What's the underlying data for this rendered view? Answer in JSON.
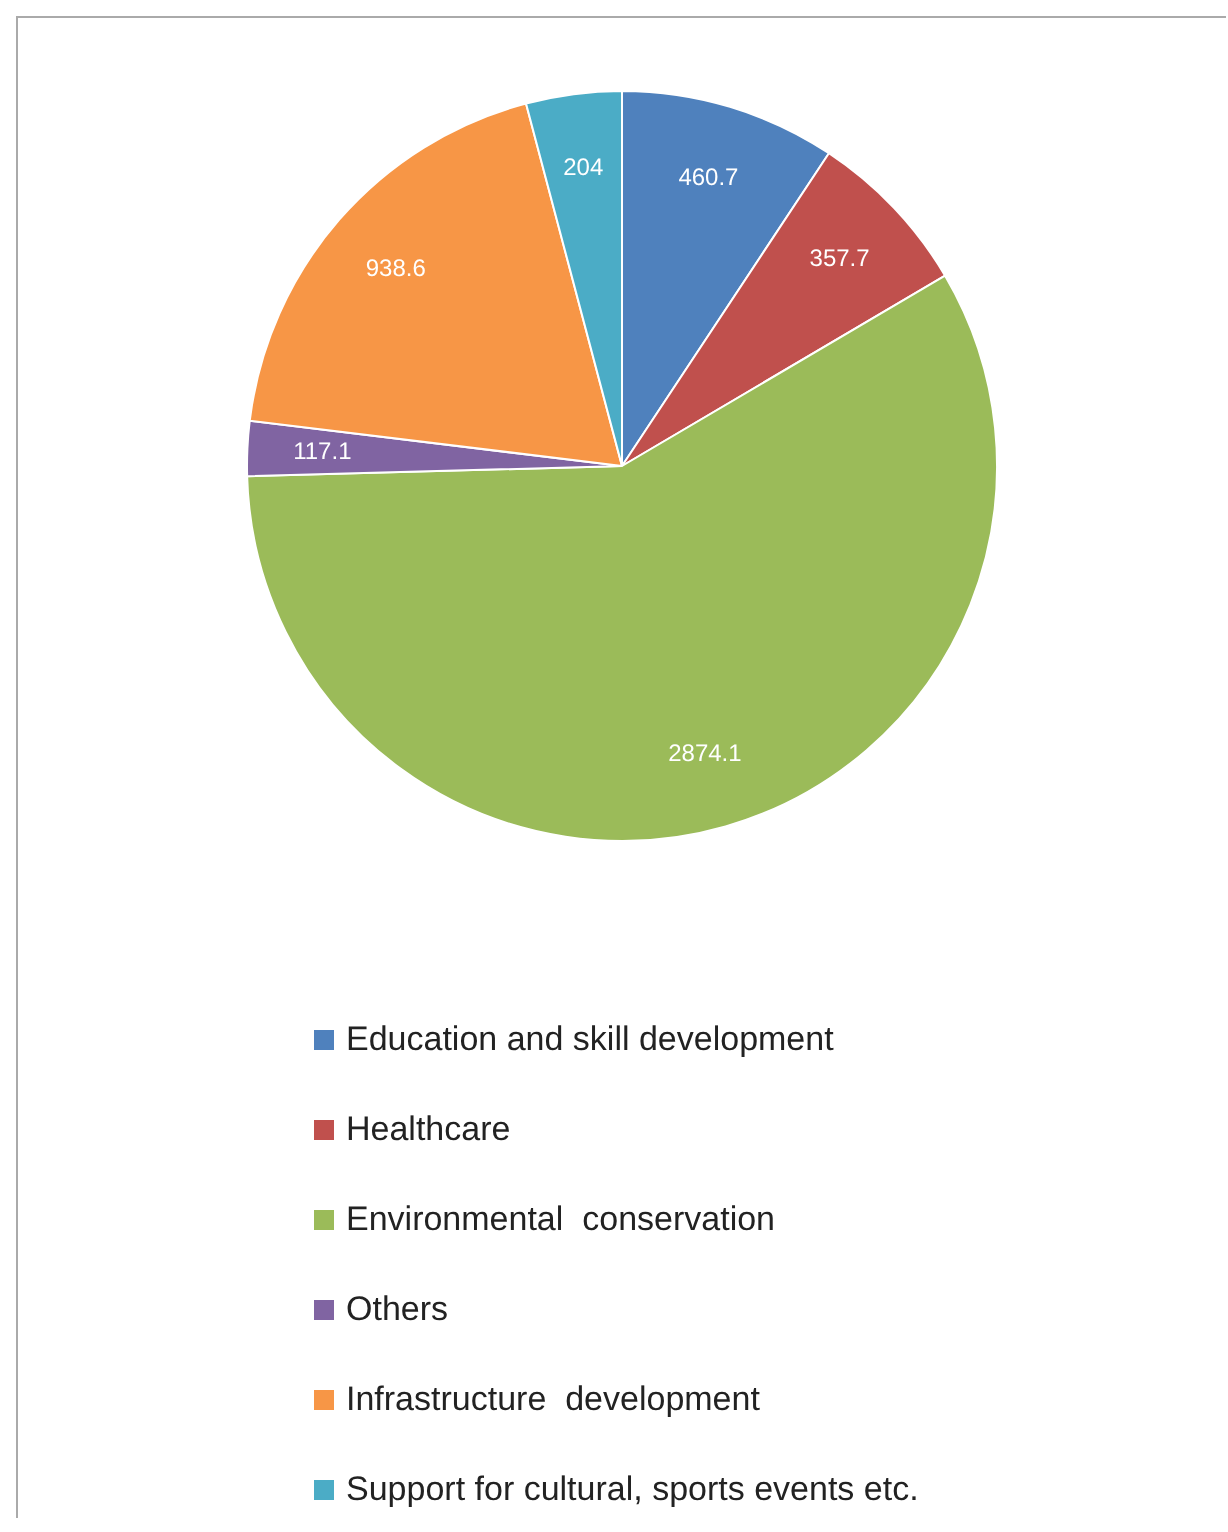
{
  "chart_data": {
    "type": "pie",
    "categories": [
      "Education and skill development",
      "Healthcare",
      "Environmental  conservation",
      "Others",
      "Infrastructure  development",
      "Support for cultural, sports events etc."
    ],
    "values": [
      460.7,
      357.7,
      2874.1,
      117.1,
      938.6,
      204
    ],
    "colors": [
      "#4f81bd",
      "#c0504d",
      "#9bbb59",
      "#8064a2",
      "#f79646",
      "#4bacc6"
    ],
    "data_labels": true,
    "legend": "bottom"
  }
}
